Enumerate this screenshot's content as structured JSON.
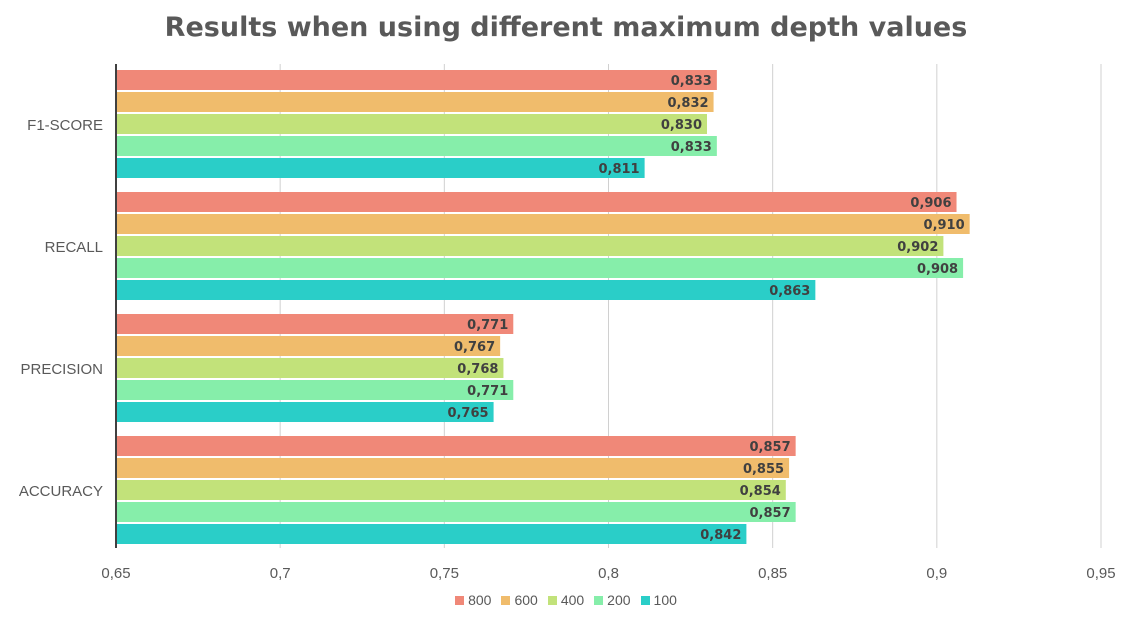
{
  "chart_data": {
    "type": "bar",
    "orientation": "horizontal",
    "title": "Results when using different maximum depth values",
    "categories": [
      "F1-SCORE",
      "RECALL",
      "PRECISION",
      "ACCURACY"
    ],
    "series": [
      {
        "name": "800",
        "color": "#f08878",
        "values": [
          0.833,
          0.906,
          0.771,
          0.857
        ],
        "labels": [
          "0,833",
          "0,906",
          "0,771",
          "0,857"
        ]
      },
      {
        "name": "600",
        "color": "#f0bc6c",
        "values": [
          0.832,
          0.91,
          0.767,
          0.855
        ],
        "labels": [
          "0,832",
          "0,910",
          "0,767",
          "0,855"
        ]
      },
      {
        "name": "400",
        "color": "#c2e27a",
        "values": [
          0.83,
          0.902,
          0.768,
          0.854
        ],
        "labels": [
          "0,830",
          "0,902",
          "0,768",
          "0,854"
        ]
      },
      {
        "name": "200",
        "color": "#86eeaa",
        "values": [
          0.833,
          0.908,
          0.771,
          0.857
        ],
        "labels": [
          "0,833",
          "0,908",
          "0,771",
          "0,857"
        ]
      },
      {
        "name": "100",
        "color": "#2acec8",
        "values": [
          0.811,
          0.863,
          0.765,
          0.842
        ],
        "labels": [
          "0,811",
          "0,863",
          "0,765",
          "0,842"
        ]
      }
    ],
    "xlim": [
      0.65,
      0.95
    ],
    "xticks": [
      0.65,
      0.7,
      0.75,
      0.8,
      0.85,
      0.9,
      0.95
    ],
    "xtick_labels": [
      "0,65",
      "0,7",
      "0,75",
      "0,8",
      "0,85",
      "0,9",
      "0,95"
    ],
    "grid": true,
    "legend_position": "bottom"
  }
}
